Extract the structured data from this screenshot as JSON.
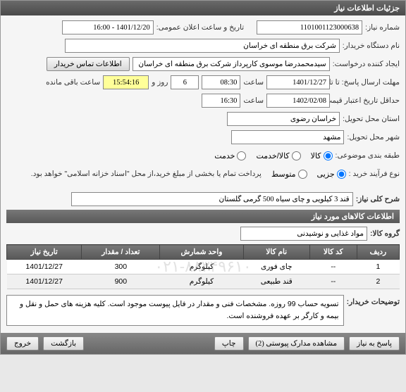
{
  "header": {
    "title": "جزئیات اطلاعات نیاز"
  },
  "fields": {
    "need_no_label": "شماره نیاز:",
    "need_no": "1101001123000638",
    "public_time_label": "تاریخ و ساعت اعلان عمومی:",
    "public_time": "1401/12/20 - 16:00",
    "buyer_label": "نام دستگاه خریدار:",
    "buyer": "شرکت برق منطقه ای خراسان",
    "creator_label": "ایجاد کننده درخواست:",
    "creator": "سیدمحمدرضا موسوی کارپرداز شرکت برق منطقه ای خراسان",
    "contact_btn": "اطلاعات تماس خریدار",
    "deadline_label": "مهلت ارسال پاسخ: تا تاریخ:",
    "deadline_date": "1401/12/27",
    "time_label": "ساعت",
    "deadline_time": "08:30",
    "days_label": "روز و",
    "days": "6",
    "remaining_label": "ساعت باقی مانده",
    "remaining": "15:54:16",
    "validity_label": "حداقل تاریخ اعتبار قیمت: تا تاریخ:",
    "validity_date": "1402/02/08",
    "validity_time": "16:30",
    "province_label": "استان محل تحویل:",
    "province": "خراسان رضوی",
    "city_label": "شهر محل تحویل:",
    "city": "مشهد",
    "category_label": "طبقه بندی موضوعی:",
    "cat_goods": "کالا",
    "cat_service": "کالا/خدمت",
    "cat_service_only": "خدمت",
    "process_label": "نوع فرآیند خرید :",
    "proc_partial": "جزیی",
    "proc_medium": "متوسط",
    "proc_note": "پرداخت تمام یا بخشی از مبلغ خرید،از محل \"اسناد خزانه اسلامی\" خواهد بود.",
    "summary_label": "شرح کلی نیاز:",
    "summary": "قند 3 کیلویی و چای سیاه 500 گرمی گلستان"
  },
  "goods_header": "اطلاعات کالاهای مورد نیاز",
  "group_label": "گروه کالا:",
  "group": "مواد غذایی و نوشیدنی",
  "table": {
    "cols": [
      "ردیف",
      "کد کالا",
      "نام کالا",
      "واحد شمارش",
      "تعداد / مقدار",
      "تاریخ نیاز"
    ],
    "rows": [
      [
        "1",
        "--",
        "چای فوری",
        "کیلوگرم",
        "300",
        "1401/12/27"
      ],
      [
        "2",
        "--",
        "قند طبیعی",
        "کیلوگرم",
        "900",
        "1401/12/27"
      ]
    ]
  },
  "watermark": "۰۲۱-۸۸۳۴۹۶۱۰",
  "desc_label": "توضیحات خریدار:",
  "desc": "تسویه حساب 99 روزه. مشخصات فنی و مقدار در فایل پیوست موجود است. کلیه هزینه های حمل و نقل و بیمه و کارگر بر عهده فروشنده است.",
  "buttons": {
    "reply": "پاسخ به نیاز",
    "docs": "مشاهده مدارک پیوستی (2)",
    "print": "چاپ",
    "back": "بازگشت",
    "exit": "خروج"
  }
}
